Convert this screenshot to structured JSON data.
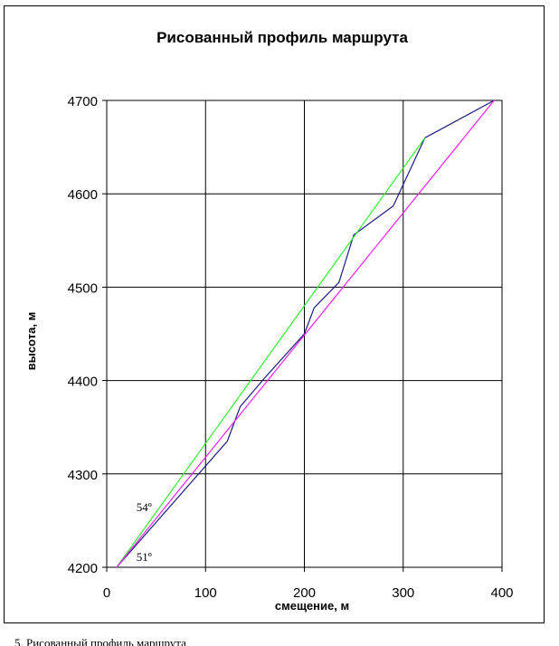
{
  "chart_data": {
    "type": "line",
    "title": "Рисованный профиль маршрута",
    "xlabel": "смещение, м",
    "ylabel": "высота, м",
    "xlim": [
      0,
      400
    ],
    "ylim": [
      4200,
      4700
    ],
    "xticks": [
      0,
      100,
      200,
      300,
      400
    ],
    "yticks": [
      4200,
      4300,
      4400,
      4500,
      4600,
      4700
    ],
    "grid": true,
    "series": [
      {
        "color": "#1a1a80",
        "x": [
          10,
          122,
          135,
          160,
          200,
          210,
          235,
          250,
          290,
          322,
          392
        ],
        "y": [
          4200,
          4335,
          4372,
          4403,
          4450,
          4478,
          4505,
          4556,
          4587,
          4660,
          4700
        ]
      },
      {
        "color": "#33ee33",
        "x": [
          10,
          322
        ],
        "y": [
          4200,
          4660
        ]
      },
      {
        "color": "#ee22ee",
        "x": [
          10,
          392
        ],
        "y": [
          4200,
          4700
        ]
      }
    ],
    "annotations": [
      {
        "text": "54º",
        "x": 30,
        "y": 4260
      },
      {
        "text": "51º",
        "x": 30,
        "y": 4207
      }
    ]
  },
  "caption": "5. Рисованный профиль маршрута"
}
